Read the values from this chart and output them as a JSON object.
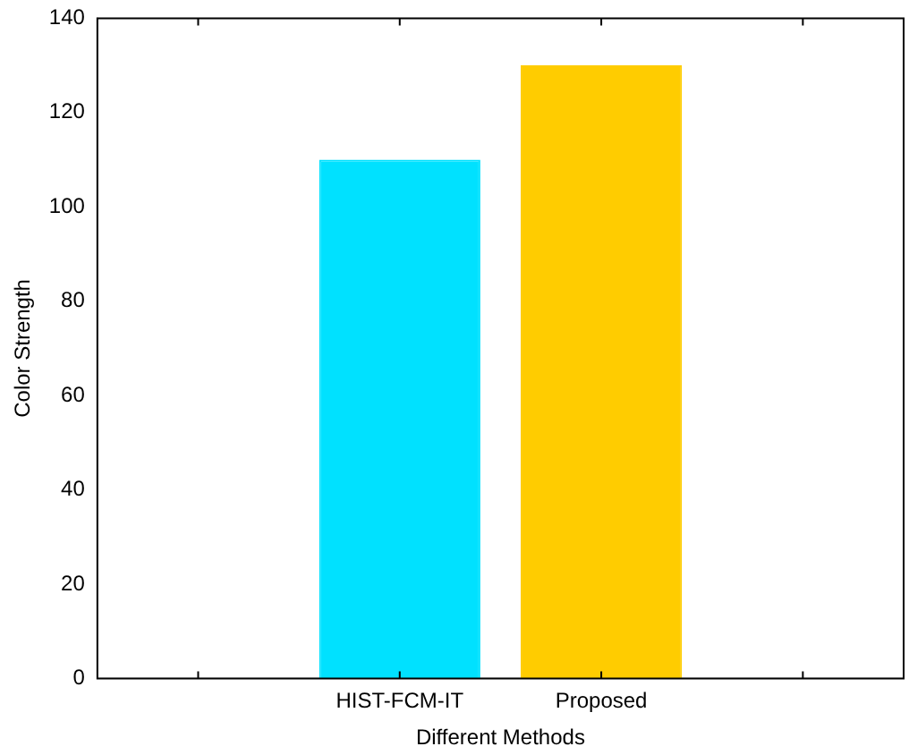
{
  "chart_data": {
    "type": "bar",
    "xlabel": "Different Methods",
    "ylabel": "Color Strength",
    "categories": [
      null,
      "HIST-FCM-IT",
      "Proposed",
      null
    ],
    "values": [
      0,
      110,
      130,
      0
    ],
    "colors": [
      "#000000",
      "#00e1ff",
      "#ffcc00",
      "#000000"
    ],
    "ylim": [
      0,
      140
    ],
    "yticks": [
      0,
      20,
      40,
      60,
      80,
      100,
      120,
      140
    ],
    "grid": false,
    "legend": false
  }
}
